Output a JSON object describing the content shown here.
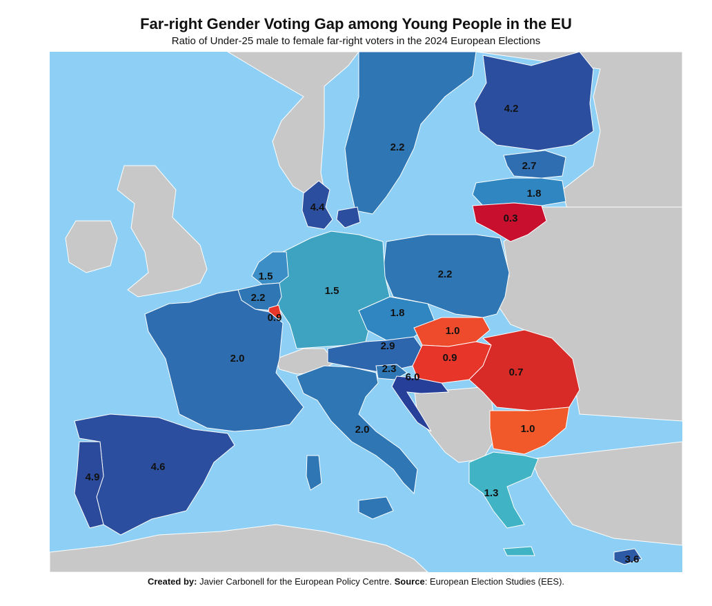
{
  "title": "Far-right Gender Voting Gap among Young People in the EU",
  "subtitle": "Ratio of Under-25 male to female far-right voters in the 2024 European Elections",
  "footer": {
    "created_label": "Created by:",
    "created_text": " Javier Carbonell for the European Policy Centre. ",
    "source_label": "Source",
    "source_text": ": European Election Studies (EES)."
  },
  "colors": {
    "sea": "#8ecff5",
    "non_eu_land": "#c8c8c8",
    "border": "#ffffff"
  },
  "countries": [
    {
      "id": "finland",
      "value": "4.2",
      "color": "#2b4f9e"
    },
    {
      "id": "sweden",
      "value": "2.2",
      "color": "#2f76b4"
    },
    {
      "id": "estonia",
      "value": "2.7",
      "color": "#2f6eb0"
    },
    {
      "id": "latvia",
      "value": "1.8",
      "color": "#2f86c0"
    },
    {
      "id": "lithuania",
      "value": "0.3",
      "color": "#c8102e"
    },
    {
      "id": "denmark",
      "value": "4.4",
      "color": "#2b4f9e"
    },
    {
      "id": "poland",
      "value": "2.2",
      "color": "#2f76b4"
    },
    {
      "id": "germany",
      "value": "1.5",
      "color": "#3ea3c1"
    },
    {
      "id": "netherlands",
      "value": "1.5",
      "color": "#3c8ec6"
    },
    {
      "id": "belgium",
      "value": "2.2",
      "color": "#2f76b4"
    },
    {
      "id": "luxembourg",
      "value": "0.9",
      "color": "#e8352a"
    },
    {
      "id": "czechia",
      "value": "1.8",
      "color": "#2f86c0"
    },
    {
      "id": "slovakia",
      "value": "1.0",
      "color": "#ee4a2c"
    },
    {
      "id": "austria",
      "value": "2.9",
      "color": "#2e66ad"
    },
    {
      "id": "hungary",
      "value": "0.9",
      "color": "#e8352a"
    },
    {
      "id": "romania",
      "value": "0.7",
      "color": "#d82a26"
    },
    {
      "id": "bulgaria",
      "value": "1.0",
      "color": "#f2592a"
    },
    {
      "id": "slovenia",
      "value": "2.3",
      "color": "#2f76b4"
    },
    {
      "id": "croatia",
      "value": "6.0",
      "color": "#263f99"
    },
    {
      "id": "france",
      "value": "2.0",
      "color": "#2e6db0"
    },
    {
      "id": "italy",
      "value": "2.0",
      "color": "#2e76b4"
    },
    {
      "id": "spain",
      "value": "4.6",
      "color": "#2b4f9e"
    },
    {
      "id": "portugal",
      "value": "4.9",
      "color": "#2b4a9b"
    },
    {
      "id": "greece",
      "value": "1.3",
      "color": "#40b3c5"
    },
    {
      "id": "cyprus",
      "value": "3.6",
      "color": "#2d5aa4"
    }
  ]
}
